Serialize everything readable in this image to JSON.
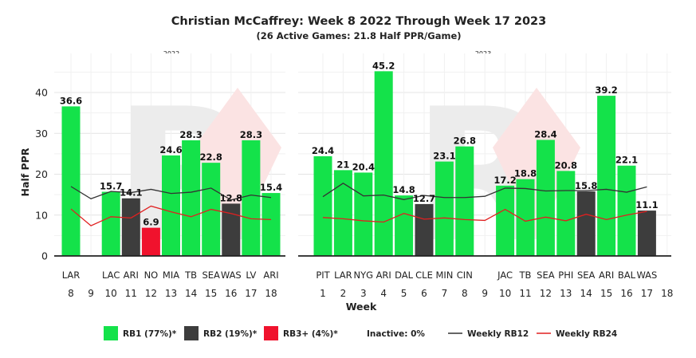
{
  "colors": {
    "rb1": "#14e24a",
    "rb2": "#3d3d3d",
    "rb3": "#f0122d",
    "rb12_line": "#333333",
    "rb24_line": "#e02020",
    "watermark_grey": "#ececec",
    "watermark_red": "#fbe3e3"
  },
  "chart_data": {
    "type": "bar",
    "title": "Christian McCaffrey: Week 8 2022 Through Week 17 2023",
    "subtitle": "(26 Active Games: 21.8 Half PPR/Game)",
    "ylabel": "Half PPR",
    "xlabel": "Week",
    "ylim": [
      0,
      50
    ],
    "yticks": [
      0,
      10,
      20,
      30,
      40
    ],
    "grid": true,
    "legend_position": "bottom",
    "legend": [
      {
        "key": "rb1",
        "label": "RB1 (77%)*"
      },
      {
        "key": "rb2",
        "label": "RB2 (19%)*"
      },
      {
        "key": "rb3",
        "label": "RB3+ (4%)*"
      },
      {
        "key": "inactive",
        "label": "Inactive: 0%"
      },
      {
        "key": "rb12",
        "label": "Weekly RB12"
      },
      {
        "key": "rb24",
        "label": "Weekly RB24"
      }
    ],
    "panels": [
      {
        "label": "2022",
        "weeks": [
          8,
          9,
          10,
          11,
          12,
          13,
          14,
          15,
          16,
          17,
          18
        ],
        "opponents": [
          "LAR",
          "",
          "LAC",
          "ARI",
          "NO",
          "MIA",
          "TB",
          "SEA",
          "WAS",
          "LV",
          "ARI"
        ],
        "values": [
          36.6,
          null,
          15.7,
          14.1,
          6.9,
          24.6,
          28.3,
          22.8,
          12.8,
          28.3,
          15.4
        ],
        "tiers": [
          "rb1",
          null,
          "rb1",
          "rb2",
          "rb3",
          "rb1",
          "rb1",
          "rb1",
          "rb2",
          "rb1",
          "rb1"
        ],
        "rb12": [
          17.0,
          14.0,
          15.8,
          15.5,
          16.3,
          15.3,
          15.6,
          16.6,
          13.7,
          14.9,
          14.3
        ],
        "rb24": [
          11.5,
          7.4,
          9.6,
          9.3,
          12.2,
          10.8,
          9.6,
          11.4,
          10.4,
          9.1,
          8.9
        ]
      },
      {
        "label": "2023",
        "weeks": [
          1,
          2,
          3,
          4,
          5,
          6,
          7,
          8,
          9,
          10,
          11,
          12,
          13,
          14,
          15,
          16,
          17,
          18
        ],
        "opponents": [
          "PIT",
          "LAR",
          "NYG",
          "ARI",
          "DAL",
          "CLE",
          "MIN",
          "CIN",
          "",
          "JAC",
          "TB",
          "SEA",
          "PHI",
          "SEA",
          "ARI",
          "BAL",
          "WAS",
          ""
        ],
        "values": [
          24.4,
          21.0,
          20.4,
          45.2,
          14.8,
          12.7,
          23.1,
          26.8,
          null,
          17.2,
          18.8,
          28.4,
          20.8,
          15.8,
          39.2,
          22.1,
          11.1,
          null
        ],
        "value_labels": [
          "24.4",
          "21",
          "20.4",
          "45.2",
          "14.8",
          "12.7",
          "23.1",
          "26.8",
          "",
          "17.2",
          "18.8",
          "28.4",
          "20.8",
          "15.8",
          "39.2",
          "22.1",
          "11.1",
          ""
        ],
        "tiers": [
          "rb1",
          "rb1",
          "rb1",
          "rb1",
          "rb1",
          "rb2",
          "rb1",
          "rb1",
          null,
          "rb1",
          "rb1",
          "rb1",
          "rb1",
          "rb2",
          "rb1",
          "rb1",
          "rb2",
          null
        ],
        "rb12": [
          14.5,
          17.8,
          14.7,
          14.9,
          13.8,
          14.8,
          14.3,
          14.3,
          14.6,
          16.6,
          16.5,
          15.9,
          16.0,
          16.0,
          16.3,
          15.6,
          16.9,
          null
        ],
        "rb24": [
          9.4,
          9.1,
          8.6,
          8.3,
          10.4,
          9.0,
          9.3,
          8.9,
          8.7,
          11.4,
          8.5,
          9.5,
          8.6,
          10.2,
          8.9,
          10.0,
          10.9,
          null
        ]
      }
    ]
  }
}
